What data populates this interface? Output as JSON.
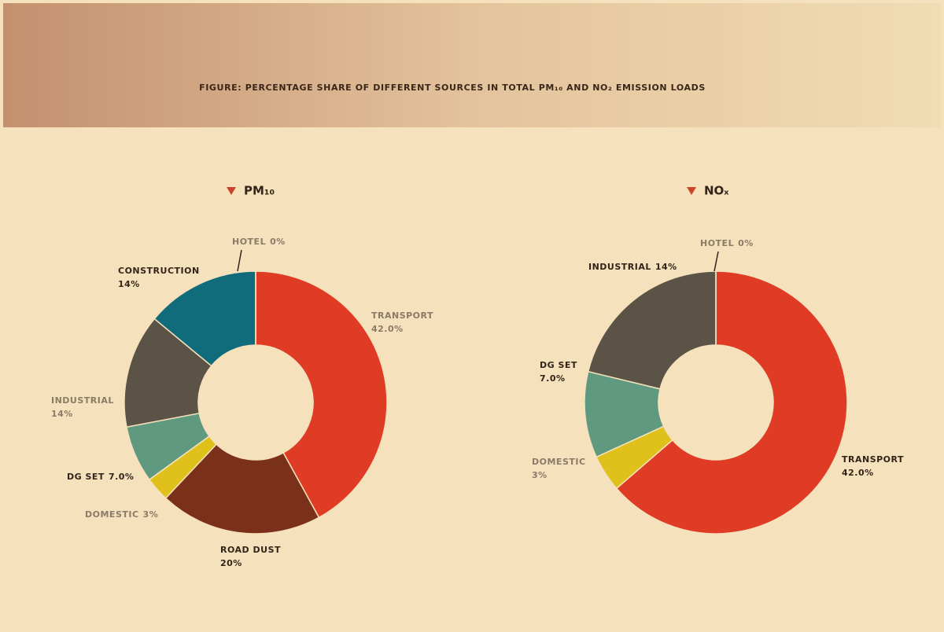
{
  "title": "FIGURE: PERCENTAGE SHARE OF DIFFERENT SOURCES IN TOTAL PM₁₀ AND NO₂ EMISSION LOADS",
  "chart_data": [
    {
      "type": "pie",
      "donut": true,
      "title": "PM₁₀",
      "categories": [
        "TRANSPORT",
        "ROAD DUST",
        "DOMESTIC",
        "DG SET",
        "INDUSTRIAL",
        "CONSTRUCTION",
        "HOTEL"
      ],
      "values": [
        42,
        20,
        3,
        7,
        14,
        14,
        0
      ],
      "value_labels": [
        "42.0%",
        "20%",
        "3%",
        "7.0%",
        "14%",
        "14%",
        "0%"
      ],
      "colors": [
        "#e03b24",
        "#7b301a",
        "#e0c11c",
        "#5f9a80",
        "#5c5347",
        "#106b7b",
        "#cfcfcf"
      ]
    },
    {
      "type": "pie",
      "donut": true,
      "title": "NOₓ",
      "categories": [
        "TRANSPORT",
        "DOMESTIC",
        "DG SET",
        "INDUSTRIAL",
        "HOTEL"
      ],
      "values": [
        42,
        3,
        7,
        14,
        0
      ],
      "value_labels": [
        "42.0%",
        "3%",
        "7.0%",
        "14%",
        "0%"
      ],
      "colors": [
        "#e03b24",
        "#e0c11c",
        "#5f9a80",
        "#5c5347",
        "#cfcfcf"
      ]
    }
  ]
}
